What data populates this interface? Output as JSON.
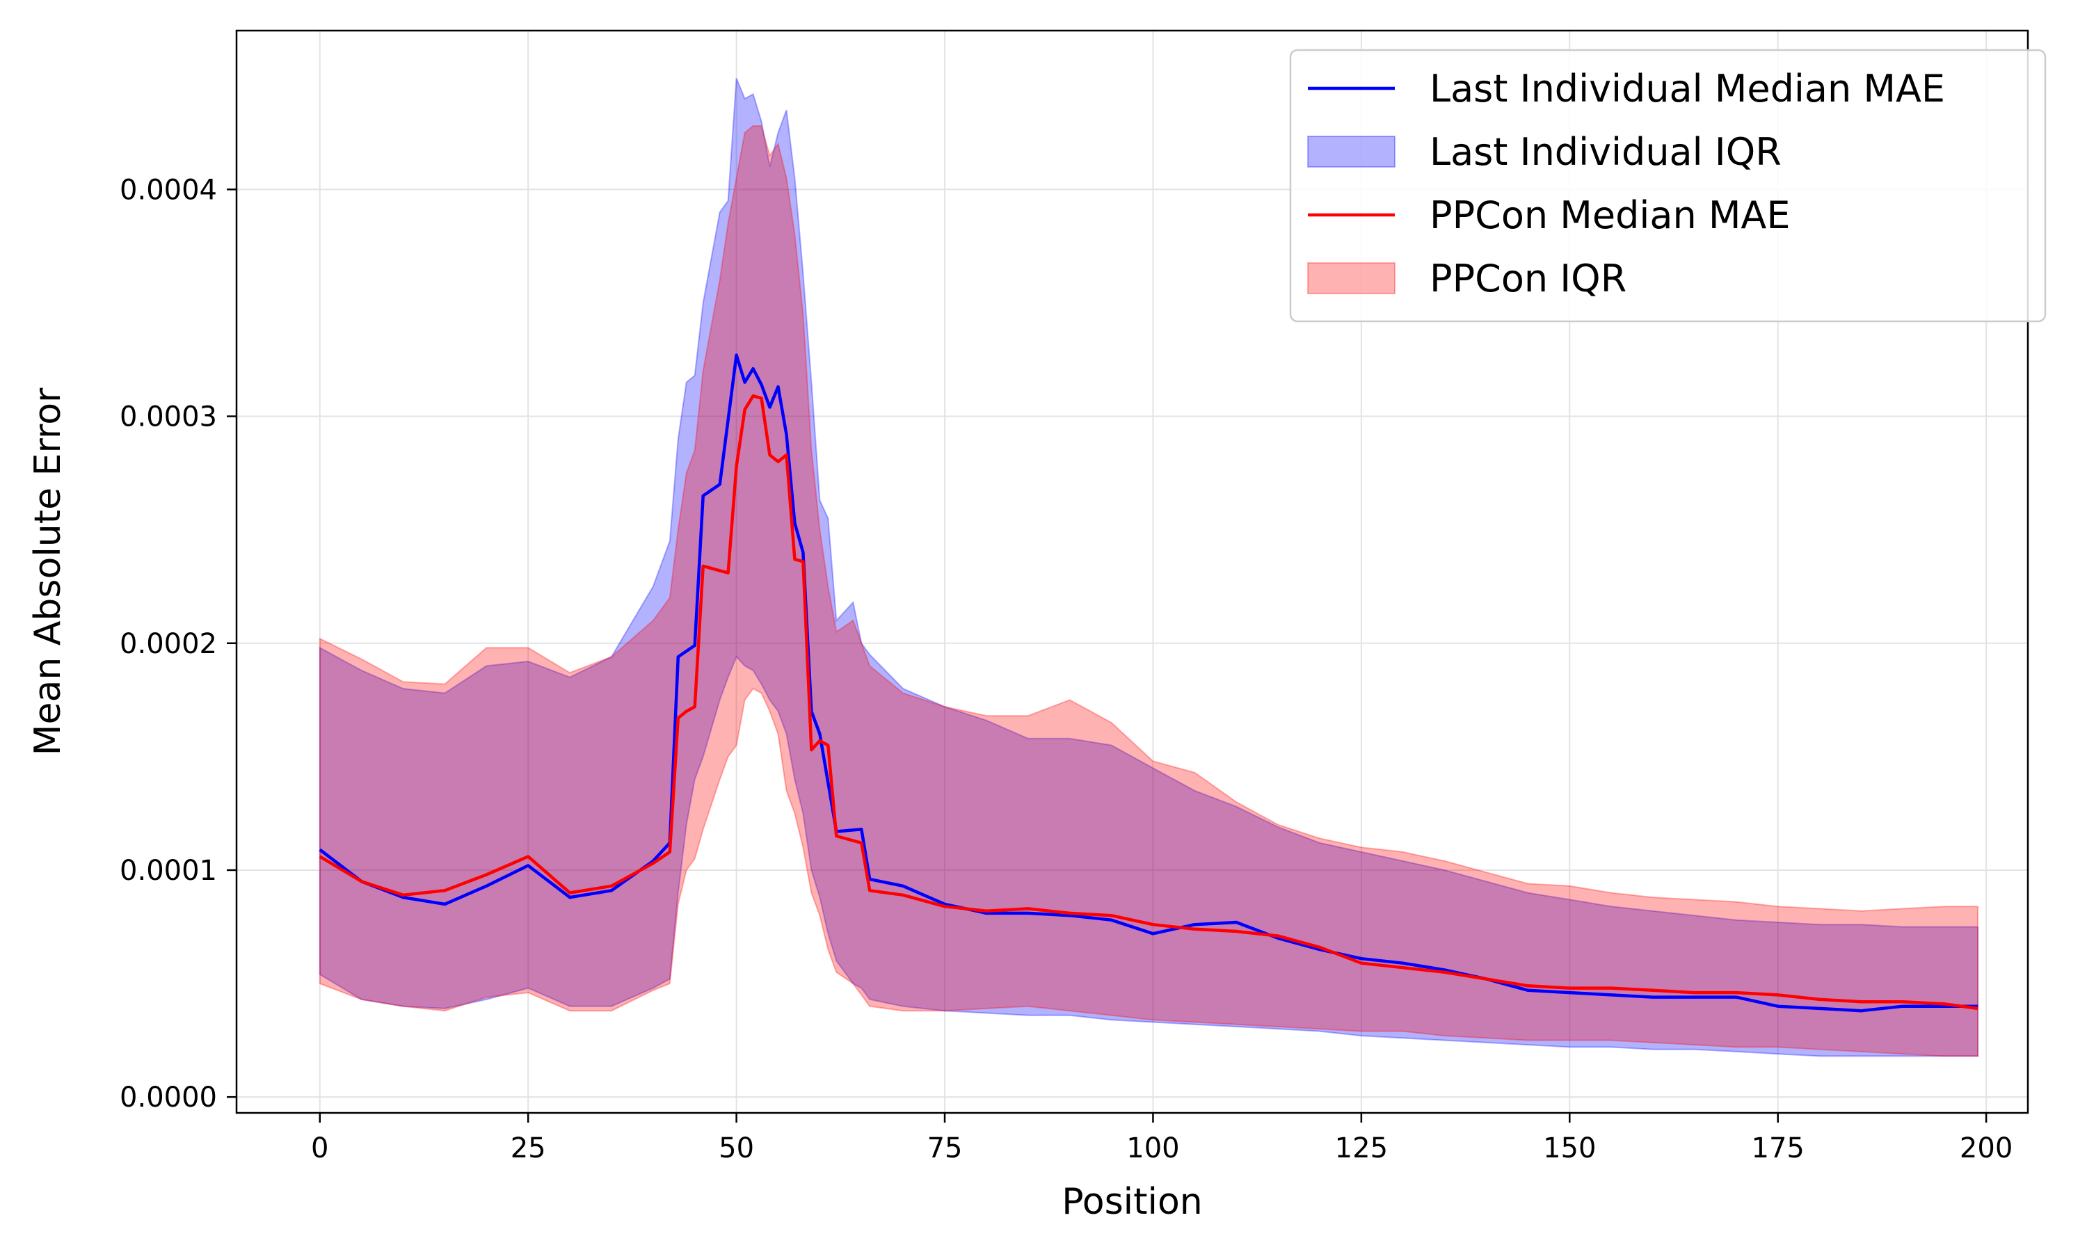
{
  "chart_data": {
    "type": "line",
    "title": "",
    "xlabel": "Position",
    "ylabel": "Mean Absolute Error",
    "xlim": [
      -10,
      205
    ],
    "ylim": [
      -7e-06,
      0.00047
    ],
    "xticks": [
      0,
      25,
      50,
      75,
      100,
      125,
      150,
      175,
      200
    ],
    "xtick_labels": [
      "0",
      "25",
      "50",
      "75",
      "100",
      "125",
      "150",
      "175",
      "200"
    ],
    "yticks": [
      0,
      0.0001,
      0.0002,
      0.0003,
      0.0004
    ],
    "ytick_labels": [
      "0.0000",
      "0.0001",
      "0.0002",
      "0.0003",
      "0.0004"
    ],
    "grid": true,
    "legend_position": "top-right",
    "legend": [
      {
        "label": "Last Individual Median MAE",
        "kind": "line",
        "color": "#0000ff"
      },
      {
        "label": "Last Individual IQR",
        "kind": "band",
        "color": "#0000ff"
      },
      {
        "label": "PPCon Median MAE",
        "kind": "line",
        "color": "#ff0000"
      },
      {
        "label": "PPCon IQR",
        "kind": "band",
        "color": "#ff0000"
      }
    ],
    "series": [
      {
        "name": "Last Individual Median MAE",
        "kind": "line",
        "color": "#0000ff",
        "x": [
          0,
          5,
          10,
          15,
          20,
          25,
          30,
          35,
          40,
          42,
          43,
          45,
          46,
          48,
          50,
          51,
          52,
          53,
          54,
          55,
          56,
          57,
          58,
          59,
          60,
          62,
          65,
          66,
          70,
          75,
          80,
          85,
          90,
          95,
          100,
          105,
          110,
          115,
          120,
          125,
          130,
          135,
          140,
          145,
          150,
          155,
          160,
          165,
          170,
          175,
          180,
          185,
          190,
          195,
          199
        ],
        "y": [
          0.000109,
          9.5e-05,
          8.8e-05,
          8.5e-05,
          9.3e-05,
          0.000102,
          8.8e-05,
          9.1e-05,
          0.000104,
          0.000112,
          0.000194,
          0.000199,
          0.000265,
          0.00027,
          0.000327,
          0.000315,
          0.000321,
          0.000314,
          0.000304,
          0.000313,
          0.000292,
          0.000253,
          0.00024,
          0.00017,
          0.00016,
          0.000117,
          0.000118,
          9.6e-05,
          9.3e-05,
          8.5e-05,
          8.1e-05,
          8.1e-05,
          8e-05,
          7.8e-05,
          7.2e-05,
          7.6e-05,
          7.7e-05,
          7e-05,
          6.5e-05,
          6.1e-05,
          5.9e-05,
          5.6e-05,
          5.2e-05,
          4.7e-05,
          4.6e-05,
          4.5e-05,
          4.4e-05,
          4.4e-05,
          4.4e-05,
          4e-05,
          3.9e-05,
          3.8e-05,
          4e-05,
          4e-05,
          4e-05
        ]
      },
      {
        "name": "Last Individual IQR",
        "kind": "band",
        "color": "#0000ff",
        "x": [
          0,
          5,
          10,
          15,
          20,
          25,
          30,
          35,
          40,
          42,
          43,
          44,
          45,
          46,
          48,
          49,
          50,
          51,
          52,
          53,
          54,
          55,
          56,
          57,
          58,
          59,
          60,
          61,
          62,
          64,
          65,
          66,
          70,
          75,
          80,
          85,
          90,
          95,
          100,
          105,
          110,
          115,
          120,
          125,
          130,
          135,
          140,
          145,
          150,
          155,
          160,
          165,
          170,
          175,
          180,
          185,
          190,
          195,
          199
        ],
        "lower": [
          5.4e-05,
          4.3e-05,
          4e-05,
          3.9e-05,
          4.3e-05,
          4.8e-05,
          4e-05,
          4e-05,
          4.8e-05,
          5.2e-05,
          9e-05,
          0.00012,
          0.00014,
          0.00015,
          0.000175,
          0.000185,
          0.000194,
          0.00019,
          0.000188,
          0.000182,
          0.000175,
          0.00017,
          0.00016,
          0.00014,
          0.000125,
          0.0001,
          8.8e-05,
          7.2e-05,
          6e-05,
          5e-05,
          4.8e-05,
          4.3e-05,
          4e-05,
          3.8e-05,
          3.7e-05,
          3.6e-05,
          3.6e-05,
          3.4e-05,
          3.3e-05,
          3.2e-05,
          3.1e-05,
          3e-05,
          2.9e-05,
          2.7e-05,
          2.6e-05,
          2.5e-05,
          2.4e-05,
          2.3e-05,
          2.2e-05,
          2.2e-05,
          2.1e-05,
          2.1e-05,
          2e-05,
          1.9e-05,
          1.8e-05,
          1.8e-05,
          1.8e-05,
          1.8e-05,
          1.8e-05
        ],
        "upper": [
          0.000198,
          0.000188,
          0.00018,
          0.000178,
          0.00019,
          0.000192,
          0.000185,
          0.000194,
          0.000225,
          0.000245,
          0.00029,
          0.000315,
          0.000318,
          0.00035,
          0.00039,
          0.000395,
          0.000449,
          0.00044,
          0.000442,
          0.00043,
          0.00041,
          0.000425,
          0.000435,
          0.000405,
          0.000363,
          0.000315,
          0.000263,
          0.000255,
          0.00021,
          0.000218,
          0.0002,
          0.000195,
          0.00018,
          0.000172,
          0.000166,
          0.000158,
          0.000158,
          0.000155,
          0.000145,
          0.000135,
          0.000128,
          0.000119,
          0.000112,
          0.000108,
          0.000104,
          0.0001,
          9.5e-05,
          9e-05,
          8.7e-05,
          8.4e-05,
          8.2e-05,
          8e-05,
          7.8e-05,
          7.7e-05,
          7.6e-05,
          7.6e-05,
          7.5e-05,
          7.5e-05,
          7.5e-05
        ]
      },
      {
        "name": "PPCon Median MAE",
        "kind": "line",
        "color": "#ff0000",
        "x": [
          0,
          5,
          10,
          15,
          20,
          25,
          30,
          35,
          40,
          42,
          43,
          44,
          45,
          46,
          48,
          49,
          50,
          51,
          52,
          53,
          54,
          55,
          56,
          57,
          58,
          59,
          60,
          61,
          62,
          65,
          66,
          70,
          75,
          80,
          85,
          90,
          95,
          100,
          105,
          110,
          115,
          120,
          125,
          130,
          135,
          140,
          145,
          150,
          155,
          160,
          165,
          170,
          175,
          180,
          185,
          190,
          195,
          199
        ],
        "y": [
          0.000106,
          9.5e-05,
          8.9e-05,
          9.1e-05,
          9.8e-05,
          0.000106,
          9e-05,
          9.3e-05,
          0.000103,
          0.000108,
          0.000167,
          0.00017,
          0.000172,
          0.000234,
          0.000232,
          0.000231,
          0.000278,
          0.000303,
          0.000309,
          0.000308,
          0.000283,
          0.00028,
          0.000283,
          0.000237,
          0.000236,
          0.000153,
          0.000157,
          0.000155,
          0.000115,
          0.000112,
          9.1e-05,
          8.9e-05,
          8.4e-05,
          8.2e-05,
          8.3e-05,
          8.1e-05,
          8e-05,
          7.6e-05,
          7.4e-05,
          7.3e-05,
          7.1e-05,
          6.6e-05,
          5.9e-05,
          5.7e-05,
          5.5e-05,
          5.2e-05,
          4.9e-05,
          4.8e-05,
          4.8e-05,
          4.7e-05,
          4.6e-05,
          4.6e-05,
          4.5e-05,
          4.3e-05,
          4.2e-05,
          4.2e-05,
          4.1e-05,
          3.9e-05
        ]
      },
      {
        "name": "PPCon IQR",
        "kind": "band",
        "color": "#ff0000",
        "x": [
          0,
          5,
          10,
          15,
          20,
          25,
          30,
          35,
          40,
          42,
          43,
          44,
          45,
          46,
          48,
          49,
          50,
          51,
          52,
          53,
          54,
          55,
          56,
          57,
          58,
          59,
          60,
          61,
          62,
          64,
          65,
          66,
          70,
          75,
          80,
          85,
          90,
          95,
          100,
          105,
          110,
          115,
          120,
          125,
          130,
          135,
          140,
          145,
          150,
          155,
          160,
          165,
          170,
          175,
          180,
          185,
          190,
          195,
          199
        ],
        "lower": [
          5e-05,
          4.3e-05,
          4e-05,
          3.8e-05,
          4.4e-05,
          4.6e-05,
          3.8e-05,
          3.8e-05,
          4.7e-05,
          5e-05,
          8.5e-05,
          0.0001,
          0.000105,
          0.000118,
          0.00014,
          0.00015,
          0.000155,
          0.000175,
          0.00018,
          0.000178,
          0.00017,
          0.00016,
          0.000135,
          0.000125,
          0.00011,
          9e-05,
          8e-05,
          6.5e-05,
          5.5e-05,
          5e-05,
          4.5e-05,
          4e-05,
          3.8e-05,
          3.8e-05,
          3.9e-05,
          4e-05,
          3.8e-05,
          3.6e-05,
          3.4e-05,
          3.3e-05,
          3.2e-05,
          3.1e-05,
          3e-05,
          2.9e-05,
          2.9e-05,
          2.7e-05,
          2.6e-05,
          2.5e-05,
          2.5e-05,
          2.5e-05,
          2.4e-05,
          2.3e-05,
          2.2e-05,
          2.2e-05,
          2.1e-05,
          2e-05,
          1.9e-05,
          1.8e-05,
          1.8e-05
        ],
        "upper": [
          0.000202,
          0.000193,
          0.000183,
          0.000182,
          0.000198,
          0.000198,
          0.000187,
          0.000194,
          0.00021,
          0.00022,
          0.00025,
          0.000275,
          0.000285,
          0.00032,
          0.00036,
          0.000385,
          0.000405,
          0.000425,
          0.000428,
          0.000428,
          0.000415,
          0.00042,
          0.000405,
          0.00038,
          0.000345,
          0.000285,
          0.00025,
          0.000225,
          0.000205,
          0.00021,
          0.0002,
          0.00019,
          0.000178,
          0.000172,
          0.000168,
          0.000168,
          0.000175,
          0.000165,
          0.000148,
          0.000143,
          0.00013,
          0.00012,
          0.000114,
          0.00011,
          0.000108,
          0.000104,
          9.9e-05,
          9.4e-05,
          9.3e-05,
          9e-05,
          8.8e-05,
          8.7e-05,
          8.6e-05,
          8.4e-05,
          8.3e-05,
          8.2e-05,
          8.3e-05,
          8.4e-05,
          8.4e-05
        ]
      }
    ]
  }
}
